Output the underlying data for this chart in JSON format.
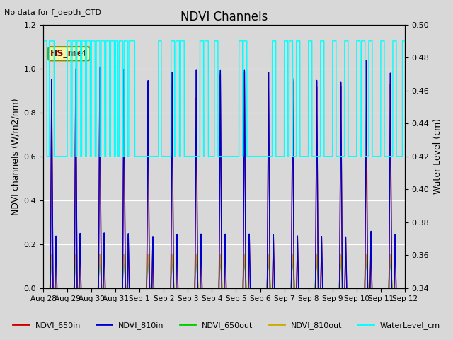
{
  "title": "NDVI Channels",
  "no_data_text": "No data for f_depth_CTD",
  "ylabel_left": "NDVI channels (W/m2/nm)",
  "ylabel_right": "Water Level (cm)",
  "ylim_left": [
    0.0,
    1.2
  ],
  "ylim_right": [
    0.34,
    0.5
  ],
  "xlim": [
    0,
    15.0
  ],
  "background_color": "#d8d8d8",
  "fig_background": "#d8d8d8",
  "hs_met_label": "HS_met",
  "colors": {
    "NDVI_650in": "#cc0000",
    "NDVI_810in": "#0000cc",
    "NDVI_650out": "#00cc00",
    "NDVI_810out": "#ccaa00",
    "WaterLevel_cm": "cyan"
  },
  "xtick_labels": [
    "Aug 28",
    "Aug 29",
    "Aug 30",
    "Aug 31",
    "Sep 1",
    "Sep 2",
    "Sep 3",
    "Sep 4",
    "Sep 5",
    "Sep 6",
    "Sep 7",
    "Sep 8",
    "Sep 9",
    "Sep 10",
    "Sep 11",
    "Sep 12"
  ],
  "xtick_positions": [
    0,
    1,
    2,
    3,
    4,
    5,
    6,
    7,
    8,
    9,
    10,
    11,
    12,
    13,
    14,
    15
  ],
  "spike_centers": [
    0.35,
    1.35,
    2.35,
    3.35,
    4.35,
    5.35,
    6.35,
    7.35,
    8.35,
    9.35,
    10.35,
    11.35,
    12.35,
    13.4,
    14.4
  ],
  "h810": [
    0.95,
    1.0,
    1.01,
    1.0,
    0.95,
    0.99,
    1.0,
    1.0,
    1.0,
    0.99,
    0.96,
    0.95,
    0.94,
    1.04,
    0.98
  ],
  "h650": [
    0.9,
    0.94,
    0.97,
    0.94,
    0.9,
    0.94,
    0.87,
    0.98,
    0.99,
    0.99,
    0.95,
    0.92,
    0.92,
    0.76,
    0.93
  ],
  "water_base": 0.42,
  "water_high": 0.49,
  "water_high_mapped": 1.133,
  "water_base_mapped": 0.62
}
